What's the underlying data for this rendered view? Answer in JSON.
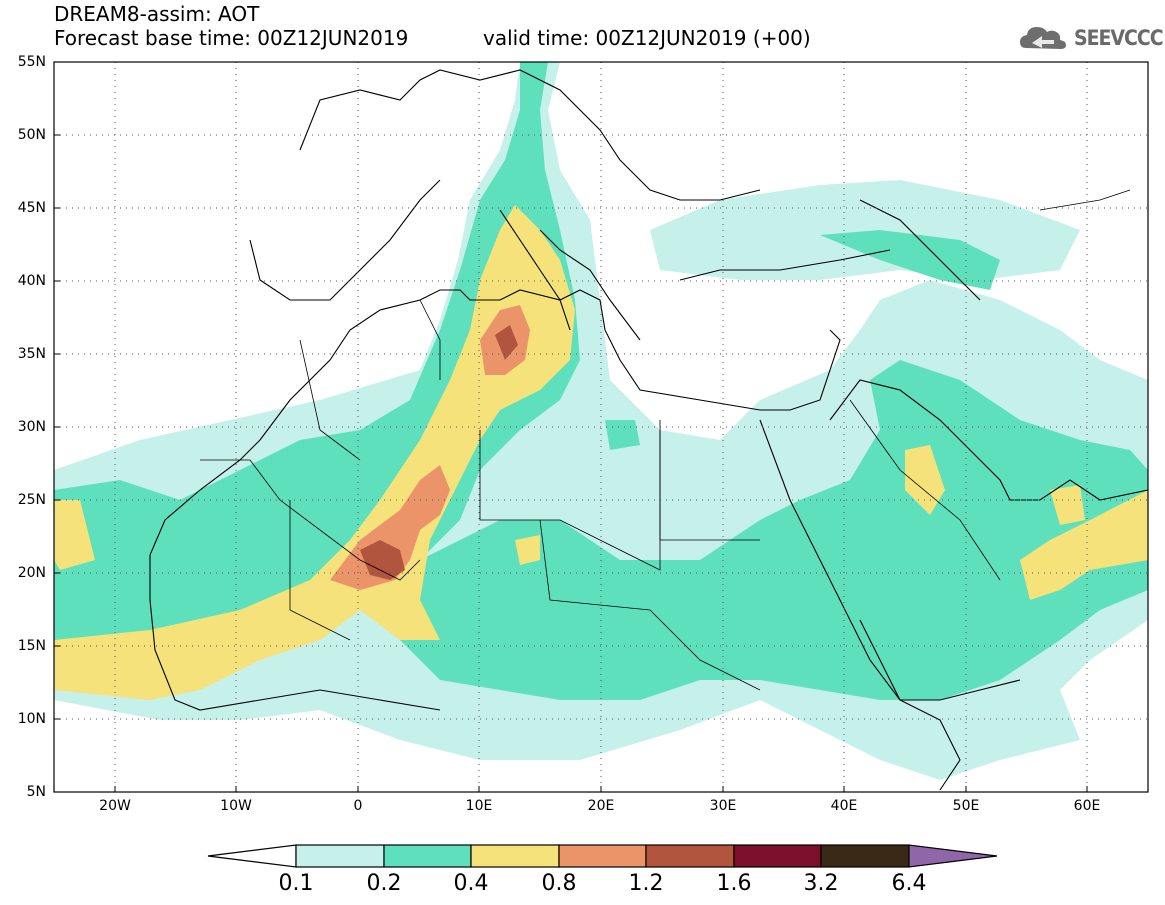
{
  "header": {
    "title": "DREAM8-assim: AOT",
    "base_time": "Forecast base time: 00Z12JUN2019",
    "valid_time": "valid time: 00Z12JUN2019 (+00)",
    "logo_text": "SEEVCCC",
    "logo_icon": "cloud-icon"
  },
  "map": {
    "lat_labels": [
      "55N",
      "50N",
      "45N",
      "40N",
      "35N",
      "30N",
      "25N",
      "20N",
      "15N",
      "10N",
      "5N"
    ],
    "lon_labels": [
      "20W",
      "10W",
      "0",
      "10E",
      "20E",
      "30E",
      "40E",
      "50E",
      "60E"
    ],
    "extent": {
      "lon_min": -25,
      "lon_max": 65,
      "lat_min": 5,
      "lat_max": 55
    },
    "grid": true
  },
  "colorbar": {
    "labels": [
      "0.1",
      "0.2",
      "0.4",
      "0.8",
      "1.2",
      "1.6",
      "3.2",
      "6.4"
    ],
    "colors": [
      "#ffffff",
      "#c6f0ea",
      "#5fe0bc",
      "#f6e27a",
      "#ec9469",
      "#b2553f",
      "#7c0f2a",
      "#3a2a15",
      "#8f66a8"
    ]
  }
}
